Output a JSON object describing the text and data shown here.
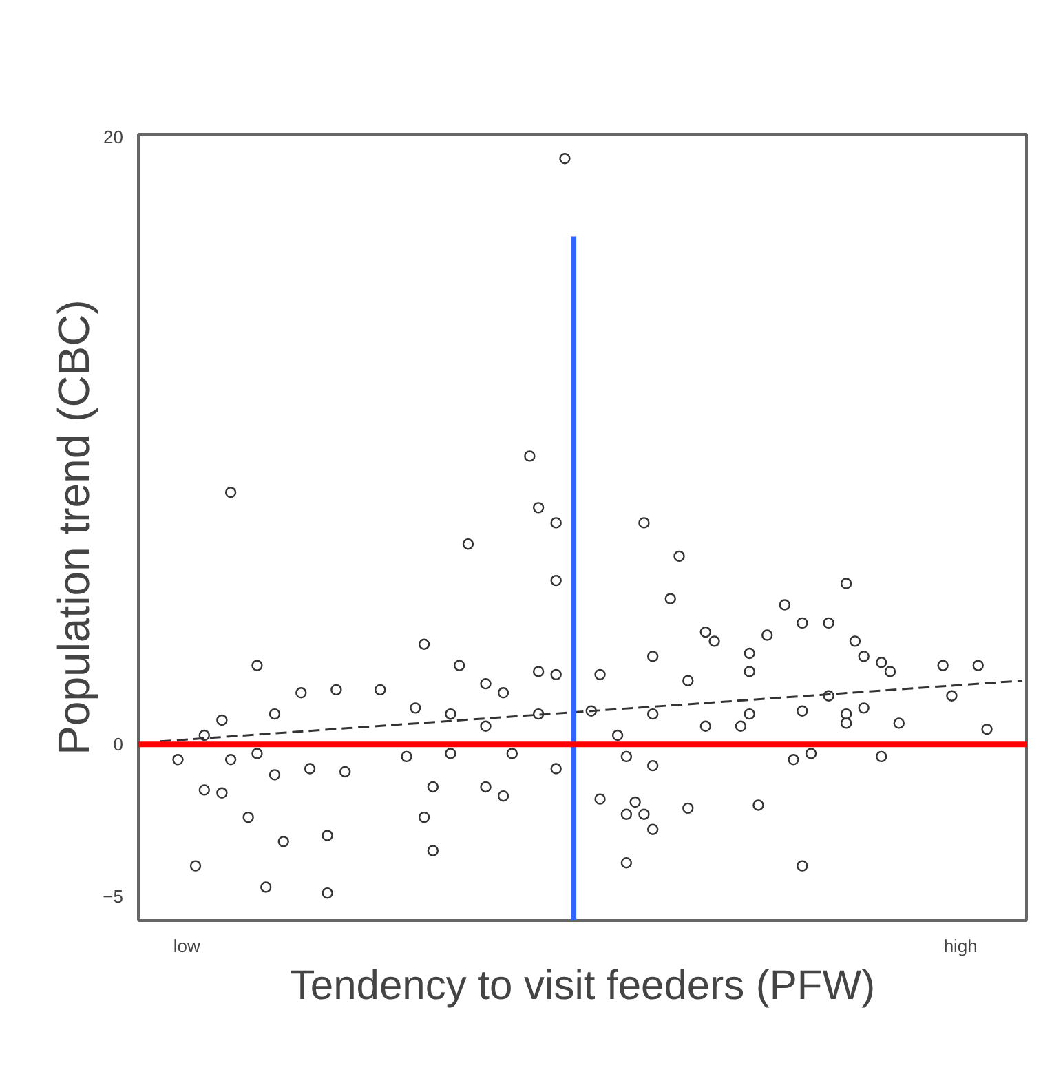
{
  "chart_data": {
    "type": "scatter",
    "xlabel": "Tendency to visit feeders (PFW)",
    "ylabel": "Population trend (CBC)",
    "categories": [
      null,
      null,
      null,
      null,
      null,
      "low",
      null,
      null,
      null,
      null,
      null,
      null,
      null,
      null,
      null,
      null,
      null,
      null,
      null,
      null,
      null,
      null,
      null,
      null,
      null,
      null,
      null,
      null,
      null,
      null,
      null,
      null,
      null,
      null,
      null,
      null,
      null,
      null,
      null,
      null,
      null,
      null,
      null,
      null,
      null,
      null,
      null,
      null,
      null,
      null,
      null,
      null,
      null,
      null,
      null,
      null,
      null,
      null,
      null,
      null,
      null,
      null,
      null,
      null,
      null,
      null,
      null,
      null,
      null,
      null,
      null,
      null,
      null,
      null,
      null,
      null,
      null,
      null,
      null,
      null,
      null,
      null,
      null,
      null,
      null,
      null,
      null,
      null,
      null,
      null,
      null,
      null,
      null,
      "high",
      null,
      null,
      null,
      null,
      null,
      null,
      null
    ],
    "ylim": [
      -5.8,
      20.1
    ],
    "yticks": [
      -5,
      0,
      20
    ],
    "grid": false,
    "marker": "circle",
    "series": [
      {
        "color": "#333333",
        "values": [
          null,
          null,
          null,
          null,
          -0.5,
          null,
          -4.0,
          0.3,
          null,
          0.8,
          8.3,
          null,
          -2.4,
          2.6,
          -4.7,
          1.0,
          -3.2,
          null,
          1.7,
          -0.8,
          null,
          -3.0,
          1.8,
          -0.9,
          null,
          null,
          null,
          1.8,
          null,
          null,
          -0.4,
          1.2,
          3.3,
          -1.4,
          null,
          1.0,
          2.6,
          6.6,
          null,
          2.0,
          null,
          1.7,
          -0.3,
          null,
          9.5,
          2.4,
          null,
          2.3,
          19.3,
          null,
          null,
          1.1,
          2.3,
          null,
          0.3,
          -0.4,
          -1.9,
          7.3,
          2.9,
          null,
          4.8,
          6.2,
          2.1,
          null,
          3.7,
          3.4,
          null,
          null,
          0.6,
          2.4,
          -2.0,
          3.6,
          null,
          4.6,
          -0.5,
          4.0,
          -0.3,
          null,
          4.0,
          null,
          5.3,
          3.4,
          2.9,
          null,
          2.7,
          2.4,
          0.7,
          null,
          null,
          null,
          null,
          2.6,
          1.6,
          null,
          null,
          2.6,
          0.5,
          null,
          null,
          null,
          null
        ]
      },
      {
        "color": "#333333",
        "values": [
          null,
          null,
          null,
          null,
          null,
          null,
          null,
          -1.5,
          null,
          -1.6,
          -0.5,
          null,
          null,
          -0.3,
          null,
          -1.0,
          null,
          null,
          null,
          null,
          null,
          -4.9,
          null,
          null,
          null,
          null,
          null,
          null,
          null,
          null,
          null,
          null,
          -2.4,
          -3.5,
          null,
          -0.3,
          null,
          null,
          null,
          0.6,
          null,
          -1.7,
          null,
          null,
          null,
          1.0,
          null,
          -0.8,
          null,
          null,
          null,
          null,
          -1.8,
          null,
          null,
          -2.3,
          null,
          -2.3,
          1.0,
          null,
          null,
          null,
          -2.1,
          null,
          0.6,
          null,
          null,
          null,
          null,
          3.0,
          null,
          null,
          null,
          null,
          null,
          1.1,
          null,
          null,
          1.6,
          null,
          1.0,
          null,
          1.2,
          null,
          -0.4,
          null,
          null,
          null,
          null,
          null,
          null,
          null,
          null,
          null,
          null,
          null,
          null,
          null,
          null,
          null,
          null
        ]
      },
      {
        "color": "#333333",
        "values": [
          null,
          null,
          null,
          null,
          null,
          null,
          null,
          null,
          null,
          null,
          null,
          null,
          null,
          null,
          null,
          null,
          null,
          null,
          null,
          null,
          null,
          null,
          null,
          null,
          null,
          null,
          null,
          null,
          null,
          null,
          null,
          null,
          null,
          null,
          null,
          null,
          null,
          null,
          null,
          -1.4,
          null,
          null,
          null,
          null,
          null,
          7.8,
          null,
          7.3,
          null,
          null,
          null,
          null,
          null,
          null,
          null,
          -3.9,
          null,
          null,
          -0.7,
          null,
          null,
          null,
          null,
          null,
          null,
          null,
          null,
          null,
          null,
          1.0,
          null,
          null,
          null,
          null,
          null,
          -4.0,
          null,
          null,
          null,
          null,
          0.7,
          null,
          null,
          null,
          null,
          null,
          null,
          null,
          null,
          null,
          null,
          null,
          null,
          null,
          null,
          null,
          null,
          null,
          null,
          null,
          null
        ]
      },
      {
        "color": "#333333",
        "values": [
          null,
          null,
          null,
          null,
          null,
          null,
          null,
          null,
          null,
          null,
          null,
          null,
          null,
          null,
          null,
          null,
          null,
          null,
          null,
          null,
          null,
          null,
          null,
          null,
          null,
          null,
          null,
          null,
          null,
          null,
          null,
          null,
          null,
          null,
          null,
          null,
          null,
          null,
          null,
          null,
          null,
          null,
          null,
          null,
          null,
          null,
          null,
          5.4,
          null,
          null,
          null,
          null,
          null,
          null,
          null,
          null,
          null,
          null,
          -2.8,
          null,
          null,
          null,
          null,
          null,
          null,
          null,
          null,
          null,
          null,
          null,
          null,
          null,
          null,
          null,
          null,
          null,
          null,
          null,
          null,
          null,
          null,
          null,
          null,
          null,
          null,
          null,
          null,
          null,
          null,
          null,
          null,
          null,
          null,
          null,
          null,
          null,
          null,
          null,
          null,
          null,
          null
        ]
      },
      {
        "type": "line",
        "line_style": "dashed",
        "marker": "none",
        "color": "#333333",
        "values": [
          null,
          null,
          0.1,
          null,
          null,
          null,
          null,
          null,
          null,
          null,
          null,
          null,
          null,
          null,
          null,
          null,
          null,
          null,
          null,
          null,
          null,
          null,
          null,
          null,
          null,
          null,
          null,
          null,
          null,
          null,
          null,
          null,
          null,
          null,
          null,
          null,
          null,
          null,
          null,
          null,
          null,
          null,
          null,
          null,
          null,
          null,
          null,
          null,
          null,
          null,
          null,
          null,
          null,
          null,
          null,
          null,
          null,
          null,
          null,
          null,
          null,
          null,
          null,
          null,
          null,
          null,
          null,
          null,
          null,
          null,
          null,
          null,
          null,
          null,
          null,
          null,
          null,
          null,
          null,
          null,
          null,
          null,
          null,
          null,
          null,
          null,
          null,
          null,
          null,
          null,
          null,
          null,
          null,
          null,
          null,
          null,
          null,
          null,
          null,
          null,
          2.1
        ]
      }
    ],
    "ref_lines": [
      {
        "axis": "y",
        "value": 0,
        "color": "#ff0000"
      }
    ]
  }
}
